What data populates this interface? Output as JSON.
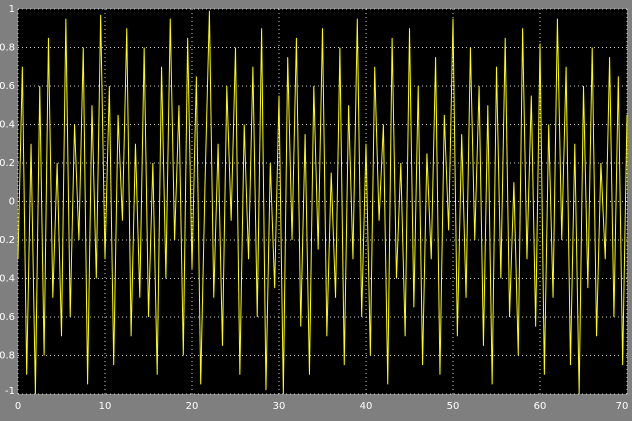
{
  "chart_data": {
    "type": "line",
    "x": [
      0,
      0.5,
      1,
      1.5,
      2,
      2.5,
      3,
      3.5,
      4,
      4.5,
      5,
      5.5,
      6,
      6.5,
      7,
      7.5,
      8,
      8.5,
      9,
      9.5,
      10,
      10.5,
      11,
      11.5,
      12,
      12.5,
      13,
      13.5,
      14,
      14.5,
      15,
      15.5,
      16,
      16.5,
      17,
      17.5,
      18,
      18.5,
      19,
      19.5,
      20,
      20.5,
      21,
      21.5,
      22,
      22.5,
      23,
      23.5,
      24,
      24.5,
      25,
      25.5,
      26,
      26.5,
      27,
      27.5,
      28,
      28.5,
      29,
      29.5,
      30,
      30.5,
      31,
      31.5,
      32,
      32.5,
      33,
      33.5,
      34,
      34.5,
      35,
      35.5,
      36,
      36.5,
      37,
      37.5,
      38,
      38.5,
      39,
      39.5,
      40,
      40.5,
      41,
      41.5,
      42,
      42.5,
      43,
      43.5,
      44,
      44.5,
      45,
      45.5,
      46,
      46.5,
      47,
      47.5,
      48,
      48.5,
      49,
      49.5,
      50,
      50.5,
      51,
      51.5,
      52,
      52.5,
      53,
      53.5,
      54,
      54.5,
      55,
      55.5,
      56,
      56.5,
      57,
      57.5,
      58,
      58.5,
      59,
      59.5,
      60,
      60.5,
      61,
      61.5,
      62,
      62.5,
      63,
      63.5,
      64,
      64.5,
      65,
      65.5,
      66,
      66.5,
      67,
      67.5,
      68,
      68.5,
      69,
      69.5,
      70
    ],
    "series": [
      {
        "color": "#ffff00",
        "values": [
          -0.3,
          0.7,
          -0.9,
          0.3,
          -1,
          0.6,
          -0.8,
          0.85,
          -0.5,
          0.2,
          -0.7,
          0.95,
          -0.6,
          0.4,
          -0.2,
          0.8,
          -0.95,
          0.5,
          -0.4,
          0.97,
          -0.3,
          0.6,
          -0.85,
          0.45,
          -0.1,
          0.9,
          -0.7,
          0.3,
          -0.5,
          0.8,
          -0.6,
          0.2,
          -0.9,
          0.7,
          -0.4,
          0.95,
          -0.2,
          0.5,
          -0.8,
          0.85,
          -0.35,
          0.65,
          -0.95,
          0.1,
          0.99,
          -0.5,
          0.3,
          -0.75,
          0.6,
          -0.1,
          0.8,
          -0.9,
          0.4,
          -0.3,
          0.7,
          -0.6,
          0.9,
          -0.98,
          0.2,
          -0.45,
          0.55,
          -1,
          0.75,
          -0.2,
          0.85,
          -0.65,
          0.35,
          -0.9,
          0.6,
          -0.25,
          0.9,
          -0.7,
          0.15,
          -0.5,
          0.8,
          -0.85,
          0.5,
          -0.3,
          0.95,
          -0.6,
          0.3,
          -0.8,
          0.7,
          -0.1,
          0.4,
          -0.95,
          0.85,
          -0.4,
          0.2,
          -0.7,
          0.9,
          -0.55,
          0.6,
          -0.85,
          0.25,
          -0.3,
          0.75,
          -0.9,
          0.45,
          -0.15,
          0.95,
          -0.7,
          0.35,
          -0.5,
          0.8,
          -0.2,
          0.6,
          -0.75,
          0.5,
          -0.95,
          0.7,
          -0.4,
          0.85,
          -0.6,
          0.1,
          -0.8,
          0.9,
          -0.3,
          0.55,
          -0.65,
          0.82,
          -0.9,
          0.4,
          -0.5,
          0.95,
          -0.2,
          0.7,
          -0.85,
          0.3,
          -1,
          0.6,
          -0.45,
          0.8,
          -0.7,
          0.2,
          -0.3,
          0.75,
          -0.6,
          0.65,
          -0.85,
          0.45
        ]
      }
    ],
    "xlim": [
      0,
      70
    ],
    "xticks": [
      0,
      10,
      20,
      30,
      40,
      50,
      60,
      70
    ],
    "ylim": [
      -1,
      1
    ],
    "yticks": [
      -1,
      -0.8,
      -0.6,
      -0.4,
      -0.2,
      0,
      0.2,
      0.4,
      0.6,
      0.8,
      1
    ],
    "grid": true,
    "background": "#000000"
  }
}
